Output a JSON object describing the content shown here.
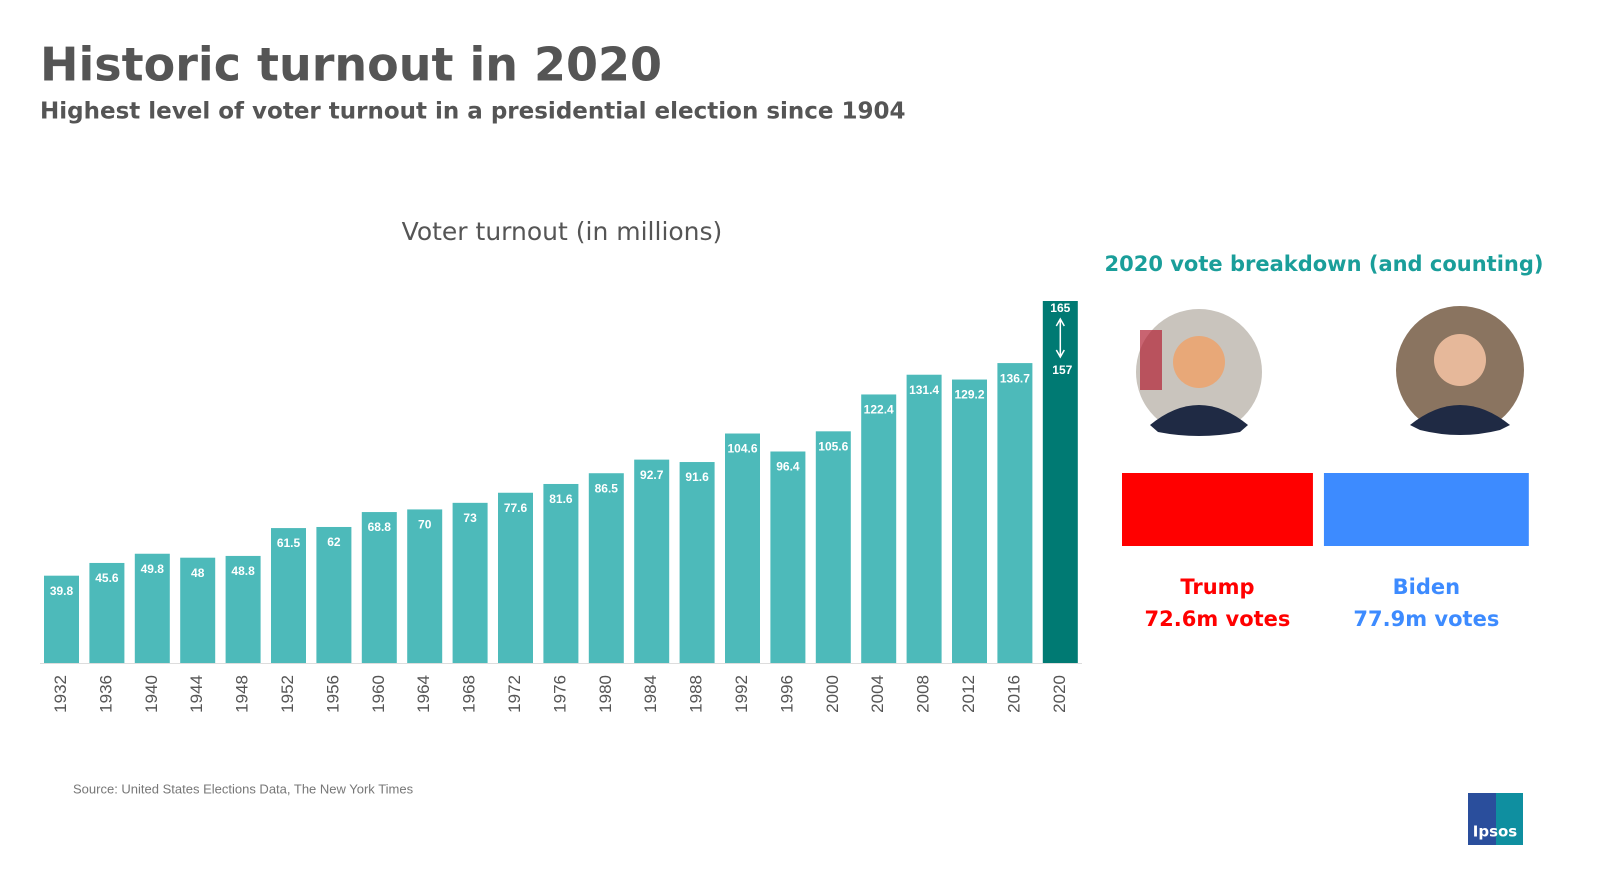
{
  "header": {
    "title": "Historic turnout in 2020",
    "subtitle": "Highest level of voter turnout in a presidential election since 1904"
  },
  "chart_data": [
    {
      "type": "bar",
      "title": "Voter turnout (in millions)",
      "categories": [
        "1932",
        "1936",
        "1940",
        "1944",
        "1948",
        "1952",
        "1956",
        "1960",
        "1964",
        "1968",
        "1972",
        "1976",
        "1980",
        "1984",
        "1988",
        "1992",
        "1996",
        "2000",
        "2004",
        "2008",
        "2012",
        "2016",
        "2020"
      ],
      "values": [
        39.8,
        45.6,
        49.8,
        48,
        48.8,
        61.5,
        62,
        68.8,
        70,
        73,
        77.6,
        81.6,
        86.5,
        92.7,
        91.6,
        104.6,
        96.4,
        105.6,
        122.4,
        131.4,
        129.2,
        136.7,
        165
      ],
      "color": "#4dbaba",
      "highlight": {
        "index": 22,
        "color": "#007a73"
      },
      "range_low": 157,
      "ylim": [
        0,
        165
      ]
    },
    {
      "type": "split-bar",
      "title": "2020 vote breakdown (and counting)",
      "categories": [
        "Trump",
        "Biden"
      ],
      "values": [
        72.6,
        77.9
      ],
      "value_labels": [
        "72.6m votes",
        "77.9m votes"
      ],
      "colors": [
        "#ff0000",
        "#3d8bff"
      ]
    }
  ],
  "source": "Source: United States Elections Data, The New York Times",
  "logo": "Ipsos"
}
